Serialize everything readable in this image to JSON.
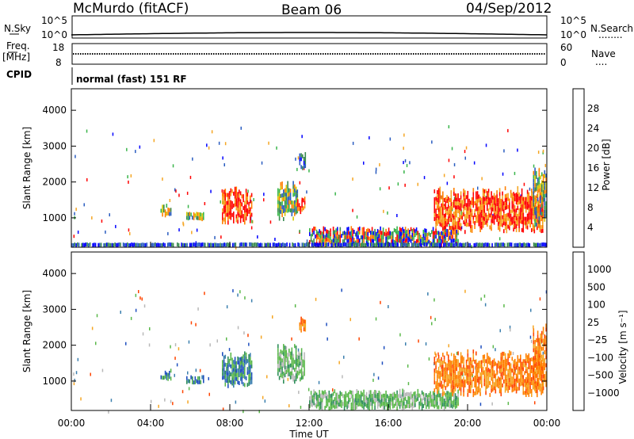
{
  "header": {
    "station": "McMurdo (fitACF)",
    "beam": "Beam 06",
    "date": "04/Sep/2012"
  },
  "nsky_panel": {
    "left_label": "N.Sky",
    "right_label": "N.Search",
    "right_dots": "........",
    "y_ticks": [
      "10^5",
      "10^0"
    ]
  },
  "freq_panel": {
    "left_label_top": "Freq.",
    "left_label_bottom": "[MHz]",
    "left_ticks": [
      "18",
      "8"
    ],
    "right_label": "Nave",
    "right_dots": "....",
    "right_ticks": [
      "60",
      "0"
    ]
  },
  "cpid_panel": {
    "label": "CPID",
    "mode_text": "normal (fast) 151 RF"
  },
  "chart_data": [
    {
      "type": "heatmap",
      "name": "power",
      "ylabel": "Slant Range [km]",
      "ylim": [
        180,
        4600
      ],
      "y_ticks": [
        "1000",
        "2000",
        "3000",
        "4000"
      ],
      "x_ticks": [
        "00:00",
        "04:00",
        "08:00",
        "12:00",
        "16:00",
        "20:00",
        "00:00"
      ],
      "colorbar": {
        "label": "Power [dB]",
        "ticks": [
          "4",
          "8",
          "12",
          "16",
          "20",
          "24",
          "28"
        ],
        "colors": [
          "#0000ff",
          "#2a5cc0",
          "#3a8a50",
          "#39b54a",
          "#d4c800",
          "#f5a623",
          "#ff7f00",
          "#ff0000"
        ]
      },
      "echo_regions": [
        {
          "t_start": 4.5,
          "t_end": 5.0,
          "r_min": 1000,
          "r_max": 1300,
          "level": "mid"
        },
        {
          "t_start": 5.8,
          "t_end": 6.7,
          "r_min": 900,
          "r_max": 1100,
          "level": "mid"
        },
        {
          "t_start": 7.6,
          "t_end": 9.1,
          "r_min": 800,
          "r_max": 1800,
          "level": "high"
        },
        {
          "t_start": 10.4,
          "t_end": 11.4,
          "r_min": 900,
          "r_max": 2000,
          "level": "mid"
        },
        {
          "t_start": 11.4,
          "t_end": 11.8,
          "r_min": 1100,
          "r_max": 1500,
          "level": "high"
        },
        {
          "t_start": 11.5,
          "t_end": 11.8,
          "r_min": 2300,
          "r_max": 2800,
          "level": "low"
        },
        {
          "t_start": 12.0,
          "t_end": 19.5,
          "r_min": 180,
          "r_max": 700,
          "level": "mixed"
        },
        {
          "t_start": 18.3,
          "t_end": 23.8,
          "r_min": 550,
          "r_max": 1800,
          "level": "high"
        },
        {
          "t_start": 23.3,
          "t_end": 24.0,
          "r_min": 700,
          "r_max": 2500,
          "level": "mid"
        },
        {
          "t_start": 0.0,
          "t_end": 24.0,
          "r_min": 180,
          "r_max": 280,
          "level": "low"
        }
      ]
    },
    {
      "type": "heatmap",
      "name": "velocity",
      "ylabel": "Slant Range [km]",
      "xlabel": "Time UT",
      "ylim": [
        180,
        4600
      ],
      "y_ticks": [
        "1000",
        "2000",
        "3000",
        "4000"
      ],
      "x_ticks": [
        "00:00",
        "04:00",
        "08:00",
        "12:00",
        "16:00",
        "20:00",
        "00:00"
      ],
      "colorbar": {
        "label": "Velocity [m s⁻¹]",
        "ticks": [
          "1000",
          "500",
          "100",
          "25",
          "−25",
          "−100",
          "−500",
          "−1000"
        ],
        "colors": [
          "#1f4fbf",
          "#3b7fae",
          "#2f8f5a",
          "#5ab84a",
          "#b8b8b8",
          "#f5a623",
          "#ff8000",
          "#ff4500",
          "#ff0000"
        ]
      },
      "echo_regions": [
        {
          "t_start": 4.5,
          "t_end": 5.0,
          "r_min": 1000,
          "r_max": 1300,
          "level": "pos"
        },
        {
          "t_start": 5.8,
          "t_end": 6.7,
          "r_min": 900,
          "r_max": 1100,
          "level": "pos"
        },
        {
          "t_start": 7.6,
          "t_end": 9.1,
          "r_min": 800,
          "r_max": 1800,
          "level": "pos"
        },
        {
          "t_start": 10.4,
          "t_end": 11.8,
          "r_min": 900,
          "r_max": 2000,
          "level": "poslow"
        },
        {
          "t_start": 11.5,
          "t_end": 11.8,
          "r_min": 2300,
          "r_max": 2800,
          "level": "neg"
        },
        {
          "t_start": 12.0,
          "t_end": 19.5,
          "r_min": 180,
          "r_max": 700,
          "level": "poslow"
        },
        {
          "t_start": 18.3,
          "t_end": 23.8,
          "r_min": 550,
          "r_max": 1800,
          "level": "neg"
        },
        {
          "t_start": 23.3,
          "t_end": 24.0,
          "r_min": 700,
          "r_max": 2500,
          "level": "neg"
        }
      ]
    }
  ]
}
